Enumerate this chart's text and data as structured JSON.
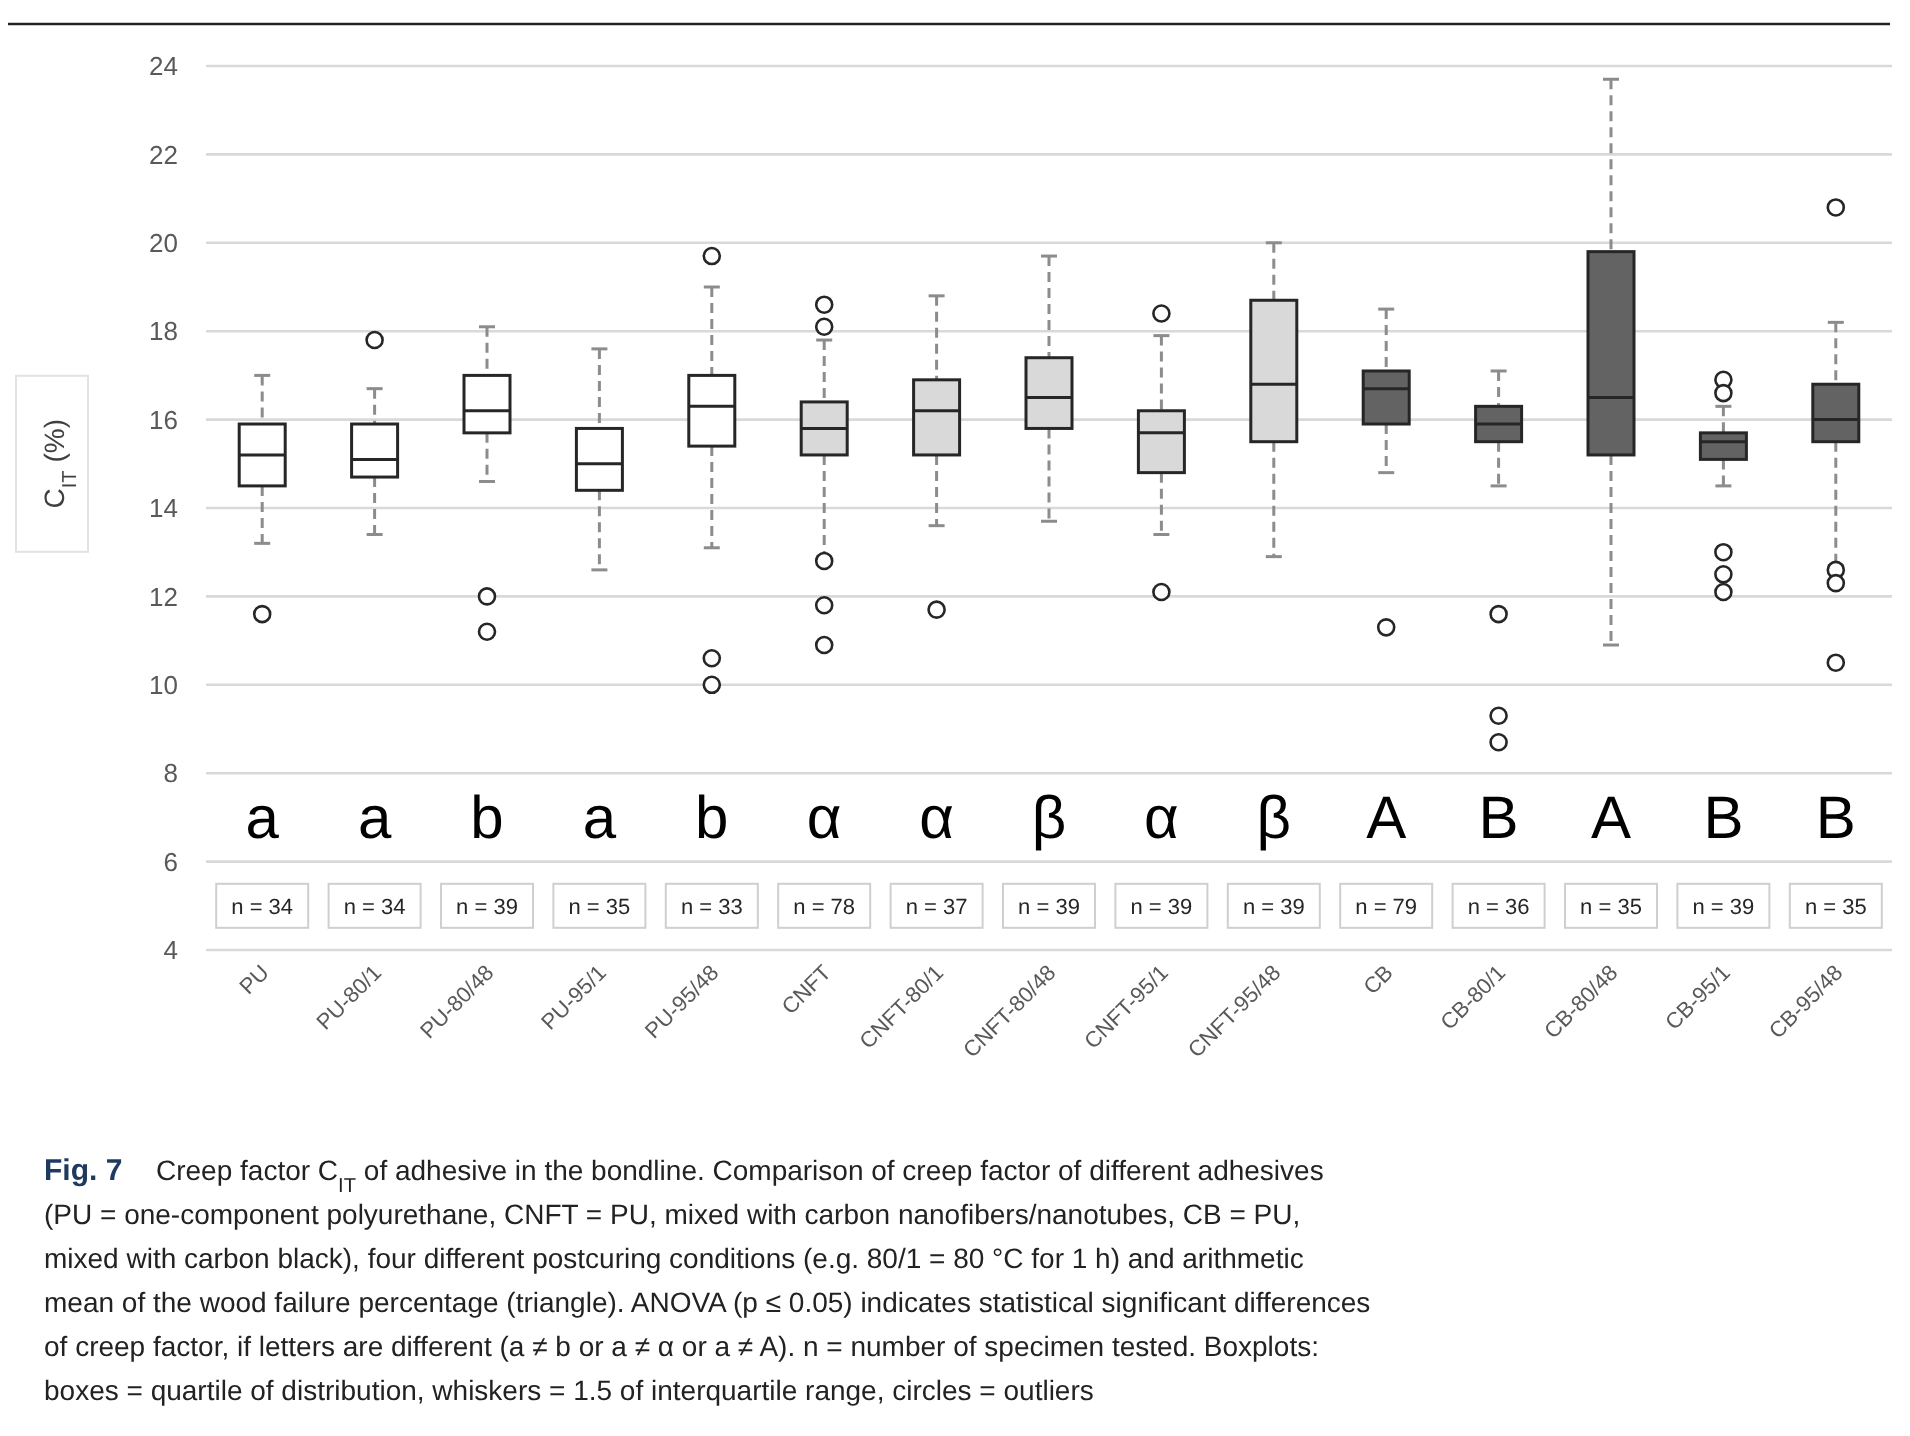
{
  "chart_data": {
    "type": "box",
    "title": "Fig. 7",
    "ylabel": "C$_{IT}$ (%)",
    "categories": [
      "PU",
      "PU-80/1",
      "PU-80/48",
      "PU-95/1",
      "PU-95/48",
      "CNFT",
      "CNFT-80/1",
      "CNFT-80/48",
      "CNFT-95/1",
      "CNFT-95/48",
      "CB",
      "CB-80/1",
      "CB-80/48",
      "CB-95/1",
      "CB-95/48"
    ],
    "colors": [
      "#ffffff",
      "#ffffff",
      "#ffffff",
      "#ffffff",
      "#ffffff",
      "#d9d9d9",
      "#d9d9d9",
      "#d9d9d9",
      "#d9d9d9",
      "#d9d9d9",
      "#636363",
      "#636363",
      "#636363",
      "#636363",
      "#636363"
    ],
    "boxes": [
      {
        "low": 13.2,
        "q1": 14.5,
        "median": 15.2,
        "q3": 15.9,
        "high": 17.0,
        "outliers": [
          11.6
        ]
      },
      {
        "low": 13.4,
        "q1": 14.7,
        "median": 15.1,
        "q3": 15.9,
        "high": 16.7,
        "outliers": [
          17.8
        ]
      },
      {
        "low": 14.6,
        "q1": 15.7,
        "median": 16.2,
        "q3": 17.0,
        "high": 18.1,
        "outliers": [
          12.0,
          11.2
        ]
      },
      {
        "low": 12.6,
        "q1": 14.4,
        "median": 15.0,
        "q3": 15.8,
        "high": 17.6
      },
      {
        "low": 13.1,
        "q1": 15.4,
        "median": 16.3,
        "q3": 17.0,
        "high": 19.0,
        "outliers": [
          19.7,
          10.6,
          10.0
        ]
      },
      {
        "low": 12.9,
        "q1": 15.2,
        "median": 15.8,
        "q3": 16.4,
        "high": 17.8,
        "outliers": [
          18.6,
          18.1,
          12.8,
          11.8,
          10.9
        ]
      },
      {
        "low": 13.6,
        "q1": 15.2,
        "median": 16.2,
        "q3": 16.9,
        "high": 18.8,
        "outliers": [
          11.7
        ]
      },
      {
        "low": 13.7,
        "q1": 15.8,
        "median": 16.5,
        "q3": 17.4,
        "high": 19.7
      },
      {
        "low": 13.4,
        "q1": 14.8,
        "median": 15.7,
        "q3": 16.2,
        "high": 17.9,
        "outliers": [
          18.4,
          12.1
        ]
      },
      {
        "low": 12.9,
        "q1": 15.5,
        "median": 16.8,
        "q3": 18.7,
        "high": 20.0
      },
      {
        "low": 14.8,
        "q1": 15.9,
        "median": 16.7,
        "q3": 17.1,
        "high": 18.5,
        "outliers": [
          11.3
        ]
      },
      {
        "low": 14.5,
        "q1": 15.5,
        "median": 15.9,
        "q3": 16.3,
        "high": 17.1,
        "outliers": [
          11.6,
          9.3,
          8.7
        ]
      },
      {
        "low": 10.9,
        "q1": 15.2,
        "median": 16.5,
        "q3": 19.8,
        "high": 23.7
      },
      {
        "low": 14.5,
        "q1": 15.1,
        "median": 15.5,
        "q3": 15.7,
        "high": 16.3,
        "outliers": [
          16.9,
          16.6,
          13.0,
          12.5,
          12.1
        ]
      },
      {
        "low": 12.7,
        "q1": 15.5,
        "median": 16.0,
        "q3": 16.8,
        "high": 18.2,
        "outliers": [
          20.8,
          12.6,
          12.3,
          10.5
        ]
      }
    ],
    "ylim": [
      4,
      24
    ],
    "yticks": [
      4,
      6,
      8,
      10,
      12,
      14,
      16,
      18,
      20,
      22,
      24
    ],
    "grid": "y",
    "annotations": [
      "a",
      "a",
      "b",
      "a",
      "b",
      "α",
      "α",
      "β",
      "α",
      "β",
      "A",
      "B",
      "A",
      "B",
      "B",
      "n = 34",
      "n = 34",
      "n = 39",
      "n = 35",
      "n = 33",
      "n = 78",
      "n = 37",
      "n = 39",
      "n = 39",
      "n = 39",
      "n = 79",
      "n = 36",
      "n = 35",
      "n = 39",
      "n = 35",
      "Creep factor C$_{IT}$ of adhesive in the bondline. Comparison of creep factor of different adhesives",
      "(PU = one-component polyurethane, CNFT = PU, mixed with carbon nanofibers/nanotubes, CB = PU,",
      "mixed with carbon black), four different postcuring conditions (e.g. 80/1 = 80 °C for 1 h) and arithmetic",
      "mean of the wood failure percentage (triangle). ANOVA (p ≤ 0.05) indicates statistical significant differences",
      "of creep factor, if letters are different (a ≠ b or a ≠ α or a ≠ A). n = number of specimen tested. Boxplots:",
      "boxes = quartile of distribution, whiskers = 1.5 of interquartile range, circles = outliers"
    ]
  }
}
